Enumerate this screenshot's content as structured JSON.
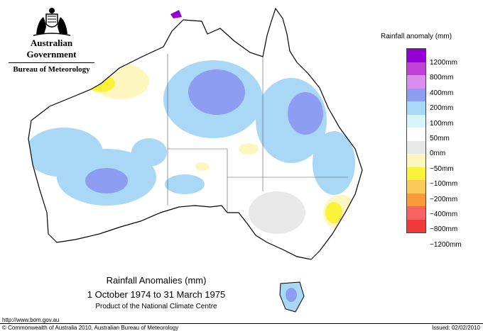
{
  "branding": {
    "government": "Australian Government",
    "bureau": "Bureau of Meteorology"
  },
  "legend": {
    "title": "Rainfall anomaly (mm)",
    "items": [
      {
        "label": "1200mm",
        "color": "#9400d3"
      },
      {
        "label": "800mm",
        "color": "#c23fd8"
      },
      {
        "label": "400mm",
        "color": "#d98ef0"
      },
      {
        "label": "200mm",
        "color": "#8c9df2"
      },
      {
        "label": "100mm",
        "color": "#a8d8f6"
      },
      {
        "label": "50mm",
        "color": "#d6f5fb"
      },
      {
        "label": "0mm",
        "color": "#ffffff"
      },
      {
        "label": "−50mm",
        "color": "#e8e8e8"
      },
      {
        "label": "−100mm",
        "color": "#fdf7bf"
      },
      {
        "label": "−200mm",
        "color": "#fbf23a"
      },
      {
        "label": "−400mm",
        "color": "#fcc95c"
      },
      {
        "label": "−800mm",
        "color": "#fa9a3c"
      },
      {
        "label": "−1200mm",
        "color": "#f76262"
      },
      {
        "label": "",
        "color": "#f23a3a"
      }
    ]
  },
  "caption": {
    "title": "Rainfall Anomalies (mm)",
    "period": "1 October 1974 to 31 March 1975",
    "product": "Product of the National Climate Centre"
  },
  "footer": {
    "url": "http://www.bom.gov.au",
    "copyright": "© Commonwealth of Australia 2010, Australian Bureau of Meteorology",
    "issued": "Issued: 02/02/2010"
  }
}
